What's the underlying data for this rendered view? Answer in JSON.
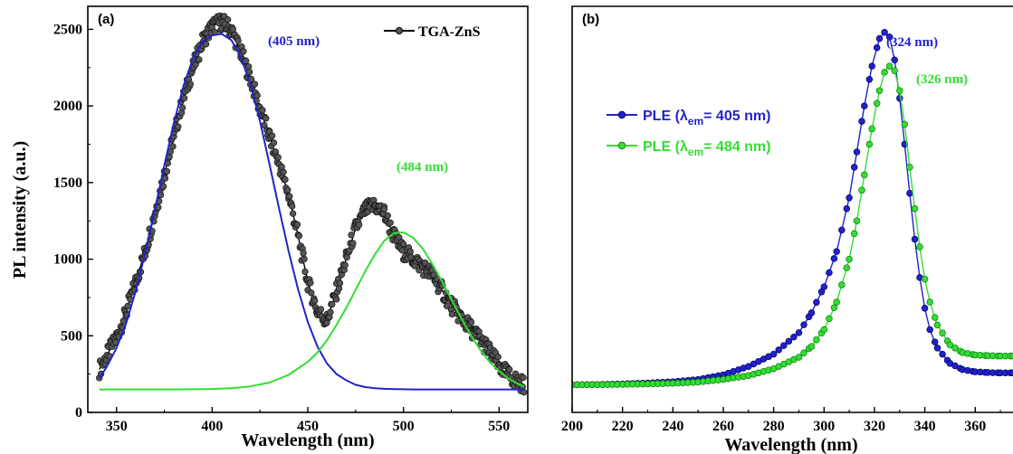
{
  "chart_data": [
    {
      "type": "scatter",
      "panel_label": "(a)",
      "title": "",
      "xlabel": "Wavelength (nm)",
      "ylabel": "PL intensity (a.u.)",
      "xlim": [
        335,
        565
      ],
      "ylim": [
        0,
        2650
      ],
      "xticks": [
        "350",
        "400",
        "450",
        "500",
        "550"
      ],
      "yticks": [
        "0",
        "500",
        "1000",
        "1500",
        "2000",
        "2500"
      ],
      "grid": false,
      "legend_position": "top-right",
      "legend": {
        "label": "TGA-ZnS",
        "color": "#000000"
      },
      "annotations": [
        {
          "text": "(405 nm)",
          "x": 405,
          "y": 2460,
          "color": "#2222cc"
        },
        {
          "text": "(484 nm)",
          "x": 484,
          "y": 1455,
          "color": "#33dd33"
        }
      ],
      "series": [
        {
          "name": "TGA-ZnS",
          "style": "markers-with-line",
          "color": "#000000",
          "marker_fill": "#555555",
          "x": [
            341,
            345,
            350,
            355,
            360,
            365,
            370,
            375,
            380,
            385,
            390,
            395,
            400,
            405,
            410,
            415,
            420,
            425,
            430,
            435,
            440,
            445,
            450,
            455,
            460,
            465,
            470,
            475,
            480,
            485,
            490,
            495,
            500,
            505,
            510,
            515,
            520,
            525,
            530,
            535,
            540,
            545,
            550,
            555,
            560,
            563
          ],
          "y": [
            280,
            370,
            490,
            650,
            850,
            1050,
            1300,
            1550,
            1800,
            2050,
            2250,
            2420,
            2520,
            2550,
            2500,
            2350,
            2180,
            1980,
            1800,
            1620,
            1420,
            1150,
            850,
            660,
            600,
            790,
            1000,
            1200,
            1320,
            1350,
            1300,
            1150,
            1050,
            1000,
            950,
            900,
            800,
            700,
            620,
            550,
            480,
            400,
            300,
            240,
            200,
            180
          ]
        },
        {
          "name": "",
          "style": "line",
          "color": "#2222cc",
          "x": [
            341,
            345,
            350,
            355,
            360,
            365,
            370,
            375,
            380,
            385,
            390,
            395,
            400,
            405,
            410,
            415,
            420,
            425,
            430,
            435,
            440,
            445,
            450,
            455,
            460,
            465,
            470,
            475,
            480,
            485,
            490,
            495,
            500,
            505,
            510,
            515,
            520,
            525,
            530,
            535,
            540,
            545,
            550,
            555,
            560,
            563
          ],
          "y": [
            220,
            300,
            420,
            580,
            790,
            1040,
            1320,
            1610,
            1890,
            2130,
            2310,
            2420,
            2460,
            2470,
            2430,
            2320,
            2140,
            1900,
            1620,
            1330,
            1050,
            800,
            590,
            430,
            320,
            250,
            210,
            180,
            165,
            158,
            154,
            152,
            151,
            150,
            150,
            150,
            150,
            150,
            150,
            150,
            150,
            150,
            150,
            150,
            150,
            150
          ]
        },
        {
          "name": "",
          "style": "line",
          "color": "#33dd33",
          "x": [
            341,
            350,
            360,
            370,
            380,
            390,
            400,
            410,
            420,
            430,
            440,
            450,
            455,
            460,
            465,
            470,
            475,
            480,
            485,
            490,
            495,
            500,
            505,
            510,
            515,
            520,
            525,
            530,
            535,
            540,
            545,
            550,
            555,
            560,
            563
          ],
          "y": [
            150,
            150,
            150,
            150,
            150,
            151,
            153,
            158,
            170,
            195,
            245,
            330,
            390,
            470,
            570,
            680,
            800,
            920,
            1030,
            1120,
            1170,
            1175,
            1140,
            1070,
            970,
            860,
            740,
            620,
            510,
            410,
            330,
            270,
            220,
            185,
            170
          ]
        }
      ]
    },
    {
      "type": "line",
      "panel_label": "(b)",
      "title": "",
      "xlabel": "Wavelength (nm)",
      "ylabel": "",
      "xlim": [
        200,
        375
      ],
      "ylim": [
        0,
        2650
      ],
      "xticks": [
        "200",
        "220",
        "240",
        "260",
        "280",
        "300",
        "320",
        "340",
        "360"
      ],
      "grid": false,
      "legend_position": "left",
      "legend": [
        {
          "prefix": "PLE (",
          "lambda": "λ",
          "sub": "em",
          "rest": "= 405 nm)",
          "color": "#2222cc"
        },
        {
          "prefix": "PLE (",
          "lambda": "λ",
          "sub": "em",
          "rest": "= 484 nm)",
          "color": "#33dd33"
        }
      ],
      "annotations": [
        {
          "text": "(324 nm)",
          "x": 324,
          "y": 2430,
          "color": "#2222cc"
        },
        {
          "text": "(326 nm)",
          "x": 326,
          "y": 2180,
          "color": "#33dd33"
        }
      ],
      "series": [
        {
          "name": "PLE (λem= 405 nm)",
          "style": "markers-with-line",
          "color": "#2222cc",
          "x": [
            200,
            210,
            220,
            230,
            240,
            250,
            260,
            270,
            280,
            290,
            295,
            300,
            305,
            310,
            313,
            316,
            319,
            322,
            324,
            326,
            328,
            330,
            332,
            334,
            336,
            338,
            340,
            342,
            345,
            350,
            355,
            360,
            365,
            370,
            375
          ],
          "y": [
            180,
            182,
            186,
            192,
            200,
            215,
            245,
            300,
            380,
            520,
            650,
            820,
            1050,
            1400,
            1700,
            2000,
            2260,
            2440,
            2480,
            2450,
            2300,
            2050,
            1750,
            1430,
            1130,
            880,
            680,
            540,
            420,
            320,
            280,
            265,
            260,
            258,
            258
          ]
        },
        {
          "name": "PLE (λem= 484 nm)",
          "style": "markers-with-line",
          "color": "#33dd33",
          "x": [
            200,
            210,
            220,
            230,
            240,
            250,
            260,
            270,
            280,
            290,
            295,
            300,
            305,
            310,
            313,
            316,
            319,
            322,
            324,
            326,
            328,
            330,
            332,
            334,
            336,
            338,
            340,
            342,
            345,
            350,
            355,
            360,
            365,
            370,
            375
          ],
          "y": [
            180,
            181,
            183,
            186,
            190,
            198,
            215,
            240,
            285,
            360,
            430,
            540,
            720,
            1000,
            1250,
            1550,
            1850,
            2100,
            2220,
            2260,
            2230,
            2100,
            1880,
            1600,
            1330,
            1080,
            870,
            720,
            570,
            440,
            390,
            375,
            370,
            368,
            368
          ]
        }
      ]
    }
  ]
}
